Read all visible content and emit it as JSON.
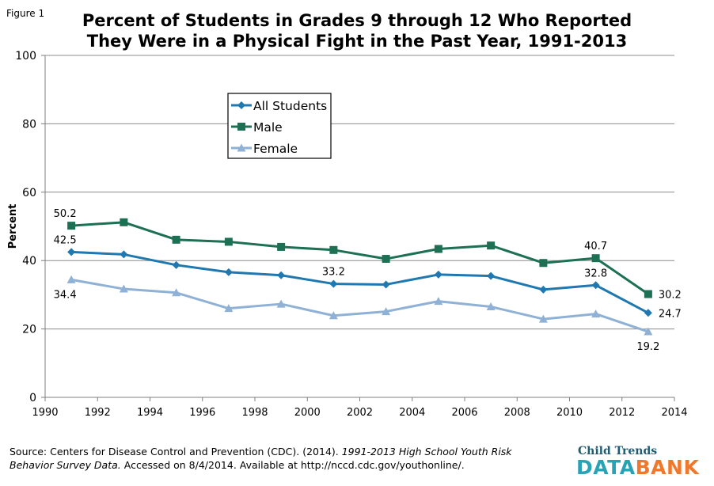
{
  "figure_label": "Figure 1",
  "chart_data": {
    "type": "line",
    "title_line1": "Percent of Students in Grades 9 through 12 Who Reported",
    "title_line2": "They Were in a Physical Fight in the Past Year, 1991-2013",
    "ylabel": "Percent",
    "xlabel": "",
    "xlim": [
      1990,
      2014
    ],
    "ylim": [
      0,
      100
    ],
    "x_ticks": [
      1990,
      1992,
      1994,
      1996,
      1998,
      2000,
      2002,
      2004,
      2006,
      2008,
      2010,
      2012,
      2014
    ],
    "y_ticks": [
      0,
      20,
      40,
      60,
      80,
      100
    ],
    "x": [
      1991,
      1993,
      1995,
      1997,
      1999,
      2001,
      2003,
      2005,
      2007,
      2009,
      2011,
      2013
    ],
    "series": [
      {
        "name": "All Students",
        "color": "#1f78b0",
        "marker": "diamond",
        "values": [
          42.5,
          41.8,
          38.7,
          36.6,
          35.7,
          33.2,
          33.0,
          35.9,
          35.5,
          31.5,
          32.8,
          24.7
        ]
      },
      {
        "name": "Male",
        "color": "#1d7053",
        "marker": "square",
        "values": [
          50.2,
          51.2,
          46.1,
          45.5,
          44.0,
          43.1,
          40.5,
          43.4,
          44.4,
          39.3,
          40.7,
          30.2
        ]
      },
      {
        "name": "Female",
        "color": "#8fb1d6",
        "marker": "triangle",
        "values": [
          34.4,
          31.7,
          30.6,
          26.0,
          27.3,
          23.9,
          25.1,
          28.1,
          26.5,
          22.9,
          24.4,
          19.2
        ]
      }
    ],
    "data_labels": [
      {
        "text": "50.2",
        "series": 1,
        "index": 0,
        "pos": "above-left"
      },
      {
        "text": "42.5",
        "series": 0,
        "index": 0,
        "pos": "above-left"
      },
      {
        "text": "34.4",
        "series": 2,
        "index": 0,
        "pos": "below-left"
      },
      {
        "text": "33.2",
        "series": 0,
        "index": 5,
        "pos": "above"
      },
      {
        "text": "40.7",
        "series": 1,
        "index": 10,
        "pos": "above"
      },
      {
        "text": "32.8",
        "series": 0,
        "index": 10,
        "pos": "above"
      },
      {
        "text": "30.2",
        "series": 1,
        "index": 11,
        "pos": "right"
      },
      {
        "text": "24.7",
        "series": 0,
        "index": 11,
        "pos": "right"
      },
      {
        "text": "19.2",
        "series": 2,
        "index": 11,
        "pos": "below"
      }
    ],
    "legend_position": "top-center",
    "grid": true
  },
  "source": {
    "prefix": "Source: Centers for Disease Control and Prevention (CDC). (2014). ",
    "italic": "1991-2013 High School Youth Risk Behavior Survey Data.",
    "suffix": " Accessed on 8/4/2014. Available at http://nccd.cdc.gov/youthonline/."
  },
  "logo": {
    "top": "Child Trends",
    "data": "DATA",
    "bank": "BANK"
  }
}
